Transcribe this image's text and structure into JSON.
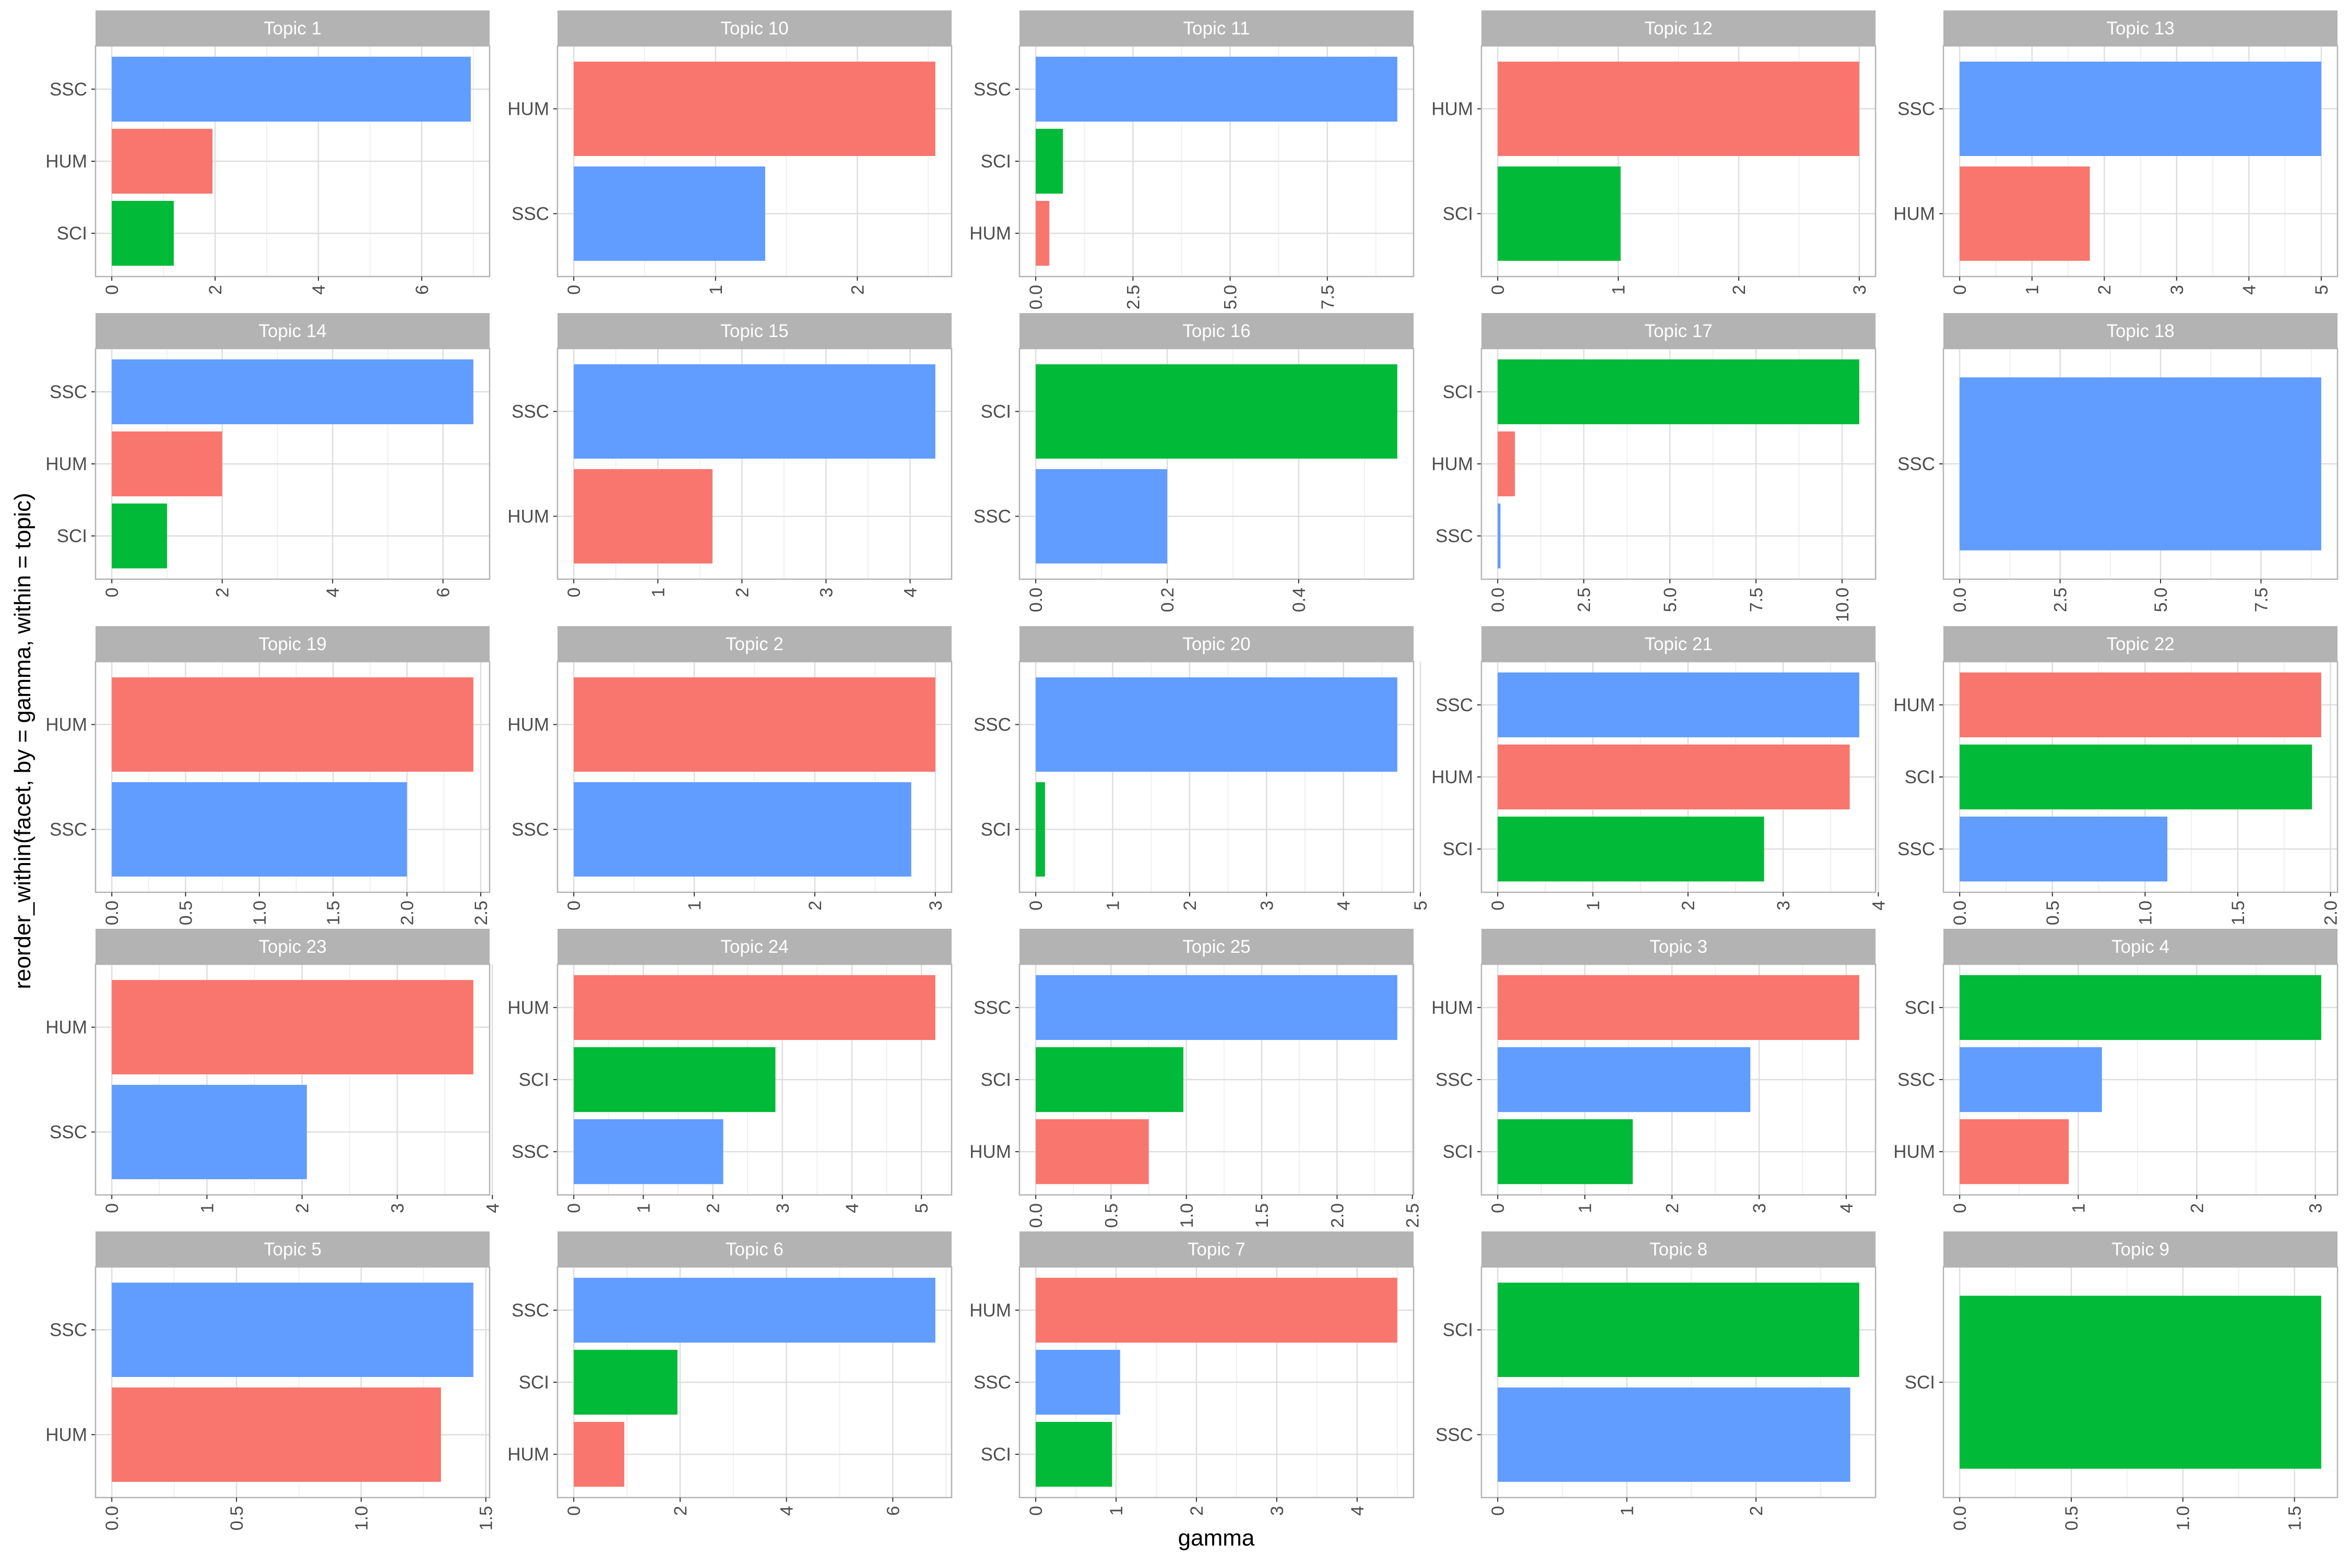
{
  "chart_data": {
    "type": "bar",
    "orientation": "horizontal",
    "xlabel": "gamma",
    "ylabel": "reorder_within(facet, by = gamma, within = topic)",
    "grid": true,
    "legend": "none",
    "colors": {
      "HUM": "#F8766D",
      "SCI": "#00BA38",
      "SSC": "#619CFF"
    },
    "strip_color": "#B3B3B3",
    "facets": [
      {
        "title": "Topic 1",
        "xlim": [
          0,
          7.0
        ],
        "ticks": [
          "0",
          "2",
          "4",
          "6"
        ],
        "tick_values": [
          0,
          2,
          4,
          6
        ],
        "bars": [
          {
            "label": "SSC",
            "value": 6.95
          },
          {
            "label": "HUM",
            "value": 1.95
          },
          {
            "label": "SCI",
            "value": 1.2
          }
        ]
      },
      {
        "title": "Topic 10",
        "xlim": [
          0,
          2.55
        ],
        "ticks": [
          "0",
          "1",
          "2"
        ],
        "tick_values": [
          0,
          1,
          2
        ],
        "bars": [
          {
            "label": "HUM",
            "value": 2.55
          },
          {
            "label": "SSC",
            "value": 1.35
          }
        ]
      },
      {
        "title": "Topic 11",
        "xlim": [
          0,
          9.3
        ],
        "ticks": [
          "0.0",
          "2.5",
          "5.0",
          "7.5"
        ],
        "tick_values": [
          0,
          2.5,
          5,
          7.5
        ],
        "bars": [
          {
            "label": "SSC",
            "value": 9.3
          },
          {
            "label": "SCI",
            "value": 0.7
          },
          {
            "label": "HUM",
            "value": 0.35
          }
        ]
      },
      {
        "title": "Topic 12",
        "xlim": [
          0,
          3.0
        ],
        "ticks": [
          "0",
          "1",
          "2",
          "3"
        ],
        "tick_values": [
          0,
          1,
          2,
          3
        ],
        "bars": [
          {
            "label": "HUM",
            "value": 3.0
          },
          {
            "label": "SCI",
            "value": 1.02
          }
        ]
      },
      {
        "title": "Topic 13",
        "xlim": [
          0,
          5.0
        ],
        "ticks": [
          "0",
          "1",
          "2",
          "3",
          "4",
          "5"
        ],
        "tick_values": [
          0,
          1,
          2,
          3,
          4,
          5
        ],
        "bars": [
          {
            "label": "SSC",
            "value": 5.0
          },
          {
            "label": "HUM",
            "value": 1.8
          }
        ]
      },
      {
        "title": "Topic 14",
        "xlim": [
          0,
          6.55
        ],
        "ticks": [
          "0",
          "2",
          "4",
          "6"
        ],
        "tick_values": [
          0,
          2,
          4,
          6
        ],
        "bars": [
          {
            "label": "SSC",
            "value": 6.55
          },
          {
            "label": "HUM",
            "value": 2.0
          },
          {
            "label": "SCI",
            "value": 1.0
          }
        ]
      },
      {
        "title": "Topic 15",
        "xlim": [
          0,
          4.3
        ],
        "ticks": [
          "0",
          "1",
          "2",
          "3",
          "4"
        ],
        "tick_values": [
          0,
          1,
          2,
          3,
          4
        ],
        "bars": [
          {
            "label": "SSC",
            "value": 4.3
          },
          {
            "label": "HUM",
            "value": 1.65
          }
        ]
      },
      {
        "title": "Topic 16",
        "xlim": [
          0,
          0.55
        ],
        "ticks": [
          "0.0",
          "0.2",
          "0.4"
        ],
        "tick_values": [
          0,
          0.2,
          0.4
        ],
        "bars": [
          {
            "label": "SCI",
            "value": 0.55
          },
          {
            "label": "SSC",
            "value": 0.2
          }
        ]
      },
      {
        "title": "Topic 17",
        "xlim": [
          0,
          10.5
        ],
        "ticks": [
          "0.0",
          "2.5",
          "5.0",
          "7.5",
          "10.0"
        ],
        "tick_values": [
          0,
          2.5,
          5,
          7.5,
          10
        ],
        "bars": [
          {
            "label": "SCI",
            "value": 10.5
          },
          {
            "label": "HUM",
            "value": 0.5
          },
          {
            "label": "SSC",
            "value": 0.08
          }
        ]
      },
      {
        "title": "Topic 18",
        "xlim": [
          0,
          9.0
        ],
        "ticks": [
          "0.0",
          "2.5",
          "5.0",
          "7.5"
        ],
        "tick_values": [
          0,
          2.5,
          5,
          7.5
        ],
        "bars": [
          {
            "label": "SSC",
            "value": 9.0
          }
        ]
      },
      {
        "title": "Topic 19",
        "xlim": [
          0,
          2.45
        ],
        "ticks": [
          "0.0",
          "0.5",
          "1.0",
          "1.5",
          "2.0",
          "2.5"
        ],
        "tick_values": [
          0,
          0.5,
          1,
          1.5,
          2,
          2.5
        ],
        "bars": [
          {
            "label": "HUM",
            "value": 2.45
          },
          {
            "label": "SSC",
            "value": 2.0
          }
        ]
      },
      {
        "title": "Topic 2",
        "xlim": [
          0,
          3.0
        ],
        "ticks": [
          "0",
          "1",
          "2",
          "3"
        ],
        "tick_values": [
          0,
          1,
          2,
          3
        ],
        "bars": [
          {
            "label": "HUM",
            "value": 3.0
          },
          {
            "label": "SSC",
            "value": 2.8
          }
        ]
      },
      {
        "title": "Topic 20",
        "xlim": [
          0,
          4.7
        ],
        "ticks": [
          "0",
          "1",
          "2",
          "3",
          "4",
          "5"
        ],
        "tick_values": [
          0,
          1,
          2,
          3,
          4,
          5
        ],
        "bars": [
          {
            "label": "SSC",
            "value": 4.7
          },
          {
            "label": "SCI",
            "value": 0.12
          }
        ]
      },
      {
        "title": "Topic 21",
        "xlim": [
          0,
          3.8
        ],
        "ticks": [
          "0",
          "1",
          "2",
          "3",
          "4"
        ],
        "tick_values": [
          0,
          1,
          2,
          3,
          4
        ],
        "bars": [
          {
            "label": "SSC",
            "value": 3.8
          },
          {
            "label": "HUM",
            "value": 3.7
          },
          {
            "label": "SCI",
            "value": 2.8
          }
        ]
      },
      {
        "title": "Topic 22",
        "xlim": [
          0,
          1.95
        ],
        "ticks": [
          "0.0",
          "0.5",
          "1.0",
          "1.5",
          "2.0"
        ],
        "tick_values": [
          0,
          0.5,
          1,
          1.5,
          2
        ],
        "bars": [
          {
            "label": "HUM",
            "value": 1.95
          },
          {
            "label": "SCI",
            "value": 1.9
          },
          {
            "label": "SSC",
            "value": 1.12
          }
        ]
      },
      {
        "title": "Topic 23",
        "xlim": [
          0,
          3.8
        ],
        "ticks": [
          "0",
          "1",
          "2",
          "3",
          "4"
        ],
        "tick_values": [
          0,
          1,
          2,
          3,
          4
        ],
        "bars": [
          {
            "label": "HUM",
            "value": 3.8
          },
          {
            "label": "SSC",
            "value": 2.05
          }
        ]
      },
      {
        "title": "Topic 24",
        "xlim": [
          0,
          5.2
        ],
        "ticks": [
          "0",
          "1",
          "2",
          "3",
          "4",
          "5"
        ],
        "tick_values": [
          0,
          1,
          2,
          3,
          4,
          5
        ],
        "bars": [
          {
            "label": "HUM",
            "value": 5.2
          },
          {
            "label": "SCI",
            "value": 2.9
          },
          {
            "label": "SSC",
            "value": 2.15
          }
        ]
      },
      {
        "title": "Topic 25",
        "xlim": [
          0,
          2.4
        ],
        "ticks": [
          "0.0",
          "0.5",
          "1.0",
          "1.5",
          "2.0",
          "2.5"
        ],
        "tick_values": [
          0,
          0.5,
          1,
          1.5,
          2,
          2.5
        ],
        "bars": [
          {
            "label": "SSC",
            "value": 2.4
          },
          {
            "label": "SCI",
            "value": 0.98
          },
          {
            "label": "HUM",
            "value": 0.75
          }
        ]
      },
      {
        "title": "Topic 3",
        "xlim": [
          0,
          4.15
        ],
        "ticks": [
          "0",
          "1",
          "2",
          "3",
          "4"
        ],
        "tick_values": [
          0,
          1,
          2,
          3,
          4
        ],
        "bars": [
          {
            "label": "HUM",
            "value": 4.15
          },
          {
            "label": "SSC",
            "value": 2.9
          },
          {
            "label": "SCI",
            "value": 1.55
          }
        ]
      },
      {
        "title": "Topic 4",
        "xlim": [
          0,
          3.05
        ],
        "ticks": [
          "0",
          "1",
          "2",
          "3"
        ],
        "tick_values": [
          0,
          1,
          2,
          3
        ],
        "bars": [
          {
            "label": "SCI",
            "value": 3.05
          },
          {
            "label": "SSC",
            "value": 1.2
          },
          {
            "label": "HUM",
            "value": 0.92
          }
        ]
      },
      {
        "title": "Topic 5",
        "xlim": [
          0,
          1.45
        ],
        "ticks": [
          "0.0",
          "0.5",
          "1.0",
          "1.5"
        ],
        "tick_values": [
          0,
          0.5,
          1,
          1.5
        ],
        "bars": [
          {
            "label": "SSC",
            "value": 1.45
          },
          {
            "label": "HUM",
            "value": 1.32
          }
        ]
      },
      {
        "title": "Topic 6",
        "xlim": [
          0,
          6.8
        ],
        "ticks": [
          "0",
          "2",
          "4",
          "6"
        ],
        "tick_values": [
          0,
          2,
          4,
          6
        ],
        "bars": [
          {
            "label": "SSC",
            "value": 6.8
          },
          {
            "label": "SCI",
            "value": 1.95
          },
          {
            "label": "HUM",
            "value": 0.95
          }
        ]
      },
      {
        "title": "Topic 7",
        "xlim": [
          0,
          4.5
        ],
        "ticks": [
          "0",
          "1",
          "2",
          "3",
          "4"
        ],
        "tick_values": [
          0,
          1,
          2,
          3,
          4
        ],
        "bars": [
          {
            "label": "HUM",
            "value": 4.5
          },
          {
            "label": "SSC",
            "value": 1.05
          },
          {
            "label": "SCI",
            "value": 0.95
          }
        ]
      },
      {
        "title": "Topic 8",
        "xlim": [
          0,
          2.8
        ],
        "ticks": [
          "0",
          "1",
          "2"
        ],
        "tick_values": [
          0,
          1,
          2
        ],
        "bars": [
          {
            "label": "SCI",
            "value": 2.8
          },
          {
            "label": "SSC",
            "value": 2.73
          }
        ]
      },
      {
        "title": "Topic 9",
        "xlim": [
          0,
          1.62
        ],
        "ticks": [
          "0.0",
          "0.5",
          "1.0",
          "1.5"
        ],
        "tick_values": [
          0,
          0.5,
          1,
          1.5
        ],
        "bars": [
          {
            "label": "SCI",
            "value": 1.62
          }
        ]
      }
    ]
  }
}
